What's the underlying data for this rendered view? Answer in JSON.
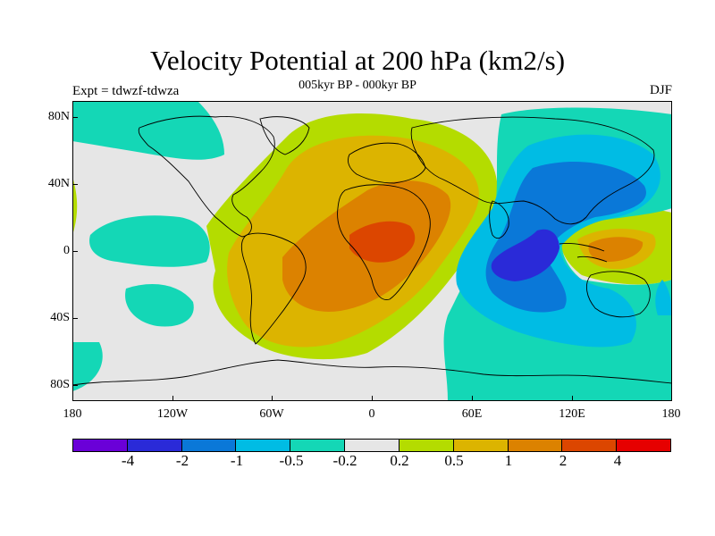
{
  "title": "Velocity Potential at 200 hPa (km2/s)",
  "subtitle": "005kyr BP - 000kyr BP",
  "left_label": "Expt = tdwzf-tdwza",
  "right_label": "DJF",
  "axes": {
    "y_ticks": [
      "80N",
      "40N",
      "0",
      "40S",
      "80S"
    ],
    "x_ticks": [
      "180",
      "120W",
      "60W",
      "0",
      "60E",
      "120E",
      "180"
    ]
  },
  "colorbar": {
    "labels": [
      "-4",
      "-2",
      "-1",
      "-0.5",
      "-0.2",
      "0.2",
      "0.5",
      "1",
      "2",
      "4"
    ],
    "colors": [
      "#6a00d8",
      "#2a2ad8",
      "#0a78d8",
      "#00bce4",
      "#14d7b6",
      "#e6e6e6",
      "#b4dc00",
      "#dcb400",
      "#dc8200",
      "#dc4600",
      "#e60000"
    ]
  },
  "map": {
    "projection": "cylindrical equidistant, longitude 180W to 180E, latitude 90S to 90N",
    "background_color": "#e6e6e6",
    "coastline_color": "#000000"
  }
}
